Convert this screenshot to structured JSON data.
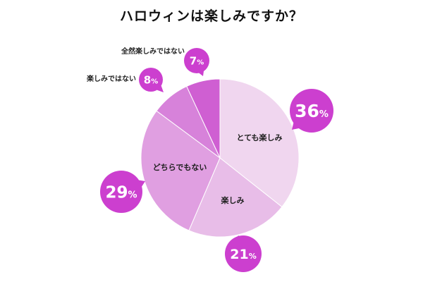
{
  "chart_data": {
    "type": "pie",
    "title": "ハロウィンは楽しみですか？",
    "unit": "%",
    "slices": [
      {
        "label": "とても楽しみ",
        "value": 36,
        "value_text": "36",
        "color": "#f0d6ef"
      },
      {
        "label": "楽しみ",
        "value": 21,
        "value_text": "21",
        "color": "#e8bde8"
      },
      {
        "label": "どちらでもない",
        "value": 29,
        "value_text": "29",
        "color": "#e09fe1"
      },
      {
        "label": "楽しみではない",
        "value": 8,
        "value_text": "8",
        "color": "#d782da"
      },
      {
        "label": "全然楽しみではない",
        "value": 7,
        "value_text": "7",
        "color": "#cf5fd2"
      }
    ],
    "bubble_color": "#cc3fcf",
    "start": "12 o'clock",
    "direction": "clockwise"
  }
}
